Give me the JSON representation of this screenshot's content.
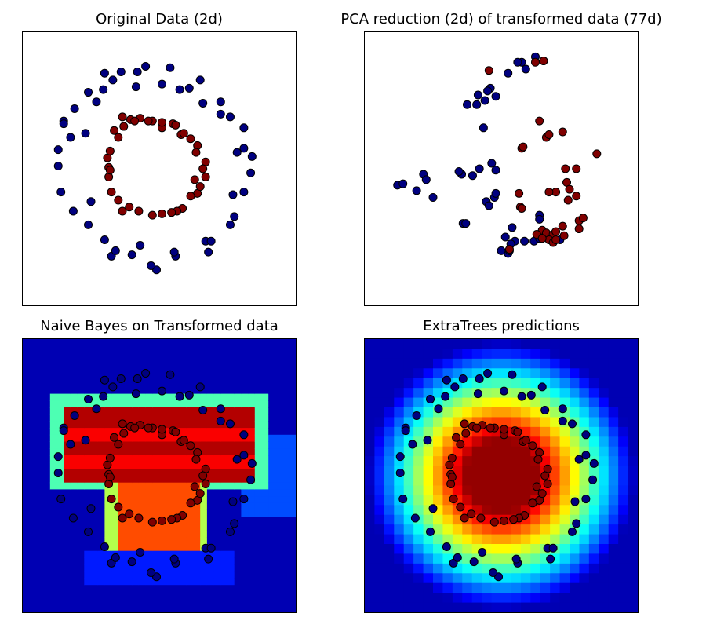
{
  "chart_data": [
    {
      "type": "scatter",
      "title": "Original Data (2d)",
      "xlim": [
        -1.0,
        1.0
      ],
      "ylim": [
        -1.0,
        1.0
      ],
      "grid": false,
      "axes_ticks": false,
      "colors": {
        "class_0": "#000080",
        "class_1": "#800000"
      },
      "series": [
        {
          "points": [
            [
              -0.34,
              0.65
            ],
            [
              -0.17,
              0.6
            ],
            [
              0.02,
              0.62
            ],
            [
              0.15,
              0.58
            ],
            [
              0.32,
              0.48
            ],
            [
              0.45,
              0.4
            ],
            [
              0.62,
              0.3
            ],
            [
              0.57,
              0.12
            ],
            [
              0.67,
              -0.03
            ],
            [
              0.62,
              -0.17
            ],
            [
              0.55,
              -0.35
            ],
            [
              0.52,
              -0.41
            ],
            [
              0.34,
              -0.53
            ],
            [
              0.12,
              -0.64
            ],
            [
              -0.02,
              -0.74
            ],
            [
              -0.2,
              -0.63
            ],
            [
              -0.4,
              -0.52
            ],
            [
              -0.52,
              -0.41
            ],
            [
              -0.63,
              -0.31
            ],
            [
              -0.72,
              -0.17
            ],
            [
              -0.74,
              0.02
            ],
            [
              -0.74,
              0.14
            ],
            [
              -0.7,
              0.35
            ],
            [
              -0.62,
              0.44
            ],
            [
              -0.52,
              0.56
            ],
            [
              -0.4,
              0.7
            ],
            [
              -0.28,
              0.71
            ],
            [
              -0.1,
              0.75
            ],
            [
              0.08,
              0.74
            ],
            [
              0.3,
              0.65
            ],
            [
              0.52,
              0.38
            ],
            [
              0.68,
              0.09
            ],
            [
              0.54,
              -0.19
            ],
            [
              0.36,
              -0.61
            ],
            [
              0.11,
              -0.61
            ],
            [
              -0.14,
              -0.56
            ],
            [
              -0.35,
              -0.64
            ],
            [
              -0.5,
              -0.24
            ],
            [
              -0.65,
              0.23
            ],
            [
              -0.46,
              0.49
            ],
            [
              -0.16,
              0.71
            ],
            [
              0.22,
              0.59
            ],
            [
              0.45,
              0.49
            ],
            [
              0.62,
              0.15
            ],
            [
              0.38,
              -0.53
            ],
            [
              -0.06,
              -0.71
            ],
            [
              -0.32,
              -0.6
            ],
            [
              -0.7,
              0.33
            ],
            [
              -0.54,
              0.26
            ],
            [
              -0.41,
              0.58
            ]
          ],
          "class": 0
        },
        {
          "points": [
            [
              -0.27,
              0.38
            ],
            [
              -0.14,
              0.37
            ],
            [
              0.02,
              0.3
            ],
            [
              0.16,
              0.25
            ],
            [
              0.28,
              0.17
            ],
            [
              0.34,
              0.05
            ],
            [
              0.34,
              -0.06
            ],
            [
              0.28,
              -0.18
            ],
            [
              0.17,
              -0.29
            ],
            [
              0.02,
              -0.33
            ],
            [
              -0.15,
              -0.31
            ],
            [
              -0.3,
              -0.23
            ],
            [
              -0.37,
              -0.06
            ],
            [
              -0.38,
              0.08
            ],
            [
              -0.3,
              0.23
            ],
            [
              -0.21,
              0.36
            ],
            [
              -0.05,
              0.35
            ],
            [
              0.1,
              0.33
            ],
            [
              0.23,
              0.22
            ],
            [
              0.32,
              0.0
            ],
            [
              0.23,
              -0.2
            ],
            [
              -0.05,
              -0.34
            ],
            [
              -0.27,
              -0.31
            ],
            [
              -0.35,
              -0.17
            ],
            [
              -0.36,
              0.13
            ],
            [
              -0.33,
              0.28
            ],
            [
              -0.26,
              0.31
            ],
            [
              -0.08,
              0.35
            ],
            [
              0.12,
              0.32
            ],
            [
              0.27,
              0.12
            ],
            [
              0.3,
              -0.13
            ],
            [
              0.13,
              -0.31
            ],
            [
              -0.22,
              -0.28
            ],
            [
              -0.37,
              0.01
            ],
            [
              0.18,
              0.26
            ],
            [
              0.02,
              0.34
            ],
            [
              -0.36,
              -0.01
            ],
            [
              0.09,
              -0.32
            ],
            [
              0.26,
              -0.08
            ],
            [
              -0.18,
              0.35
            ]
          ],
          "class": 1
        }
      ]
    },
    {
      "type": "scatter",
      "title": "PCA reduction (2d) of transformed data (77d)",
      "xlim": [
        -1.0,
        1.0
      ],
      "ylim": [
        -1.0,
        1.0
      ],
      "grid": false,
      "axes_ticks": false,
      "colors": {
        "class_0": "#000080",
        "class_1": "#800000"
      },
      "series": [
        {
          "points": [
            [
              0.05,
              0.7
            ],
            [
              0.15,
              0.78
            ],
            [
              0.25,
              0.82
            ],
            [
              0.18,
              0.73
            ],
            [
              -0.08,
              0.59
            ],
            [
              -0.04,
              0.53
            ],
            [
              -0.18,
              0.47
            ],
            [
              -0.25,
              0.47
            ],
            [
              -0.12,
              0.5
            ],
            [
              -0.17,
              0.54
            ],
            [
              -0.1,
              0.57
            ],
            [
              -0.13,
              0.3
            ],
            [
              0.12,
              0.78
            ],
            [
              0.31,
              0.79
            ],
            [
              -0.76,
              -0.12
            ],
            [
              -0.72,
              -0.11
            ],
            [
              -0.57,
              -0.04
            ],
            [
              -0.55,
              -0.08
            ],
            [
              -0.62,
              -0.16
            ],
            [
              -0.5,
              -0.21
            ],
            [
              -0.29,
              -0.04
            ],
            [
              -0.31,
              -0.02
            ],
            [
              -0.21,
              -0.05
            ],
            [
              -0.05,
              -0.21
            ],
            [
              -0.11,
              -0.24
            ],
            [
              -0.16,
              0.0
            ],
            [
              -0.07,
              0.04
            ],
            [
              -0.04,
              -0.01
            ],
            [
              -0.04,
              -0.18
            ],
            [
              -0.09,
              -0.27
            ],
            [
              -0.28,
              -0.4
            ],
            [
              -0.26,
              -0.4
            ],
            [
              0.28,
              -0.34
            ],
            [
              0.28,
              -0.37
            ],
            [
              0.24,
              -0.53
            ],
            [
              0.28,
              -0.51
            ],
            [
              0.36,
              -0.51
            ],
            [
              0.38,
              -0.51
            ],
            [
              0.17,
              -0.53
            ],
            [
              0.08,
              -0.43
            ],
            [
              0.1,
              -0.53
            ],
            [
              0.07,
              -0.55
            ],
            [
              0.05,
              -0.62
            ],
            [
              0.06,
              -0.6
            ],
            [
              0.03,
              -0.5
            ],
            [
              0.0,
              -0.6
            ],
            [
              0.43,
              -0.52
            ]
          ],
          "class": 0
        },
        {
          "points": [
            [
              0.31,
              0.79
            ],
            [
              0.25,
              0.78
            ],
            [
              -0.09,
              0.72
            ],
            [
              0.28,
              0.35
            ],
            [
              0.48,
              -0.1
            ],
            [
              0.55,
              -0.0
            ],
            [
              0.33,
              0.23
            ],
            [
              0.35,
              0.25
            ],
            [
              0.45,
              0.27
            ],
            [
              0.7,
              0.11
            ],
            [
              0.47,
              0.0
            ],
            [
              0.5,
              -0.15
            ],
            [
              0.55,
              -0.2
            ],
            [
              0.49,
              -0.23
            ],
            [
              0.4,
              -0.17
            ],
            [
              0.35,
              -0.17
            ],
            [
              0.15,
              0.15
            ],
            [
              0.16,
              0.16
            ],
            [
              0.3,
              -0.45
            ],
            [
              0.33,
              -0.47
            ],
            [
              0.38,
              -0.48
            ],
            [
              0.4,
              -0.46
            ],
            [
              0.45,
              -0.42
            ],
            [
              0.57,
              -0.38
            ],
            [
              0.6,
              -0.36
            ],
            [
              0.57,
              -0.44
            ],
            [
              0.46,
              -0.49
            ],
            [
              0.35,
              -0.52
            ],
            [
              0.14,
              -0.28
            ],
            [
              0.15,
              -0.29
            ],
            [
              0.13,
              -0.18
            ],
            [
              0.06,
              -0.59
            ],
            [
              0.26,
              -0.48
            ],
            [
              0.3,
              -0.51
            ],
            [
              0.38,
              -0.54
            ],
            [
              0.4,
              -0.52
            ]
          ],
          "class": 1
        }
      ]
    },
    {
      "type": "heatmap",
      "title": "Naive Bayes on Transformed data",
      "colormap": "jet",
      "xlim": [
        -1.0,
        1.0
      ],
      "ylim": [
        -1.0,
        1.0
      ],
      "grid": false,
      "axes_ticks": false,
      "overlay": "Original Data (2d) points"
    },
    {
      "type": "heatmap",
      "title": "ExtraTrees predictions",
      "colormap": "jet",
      "xlim": [
        -1.0,
        1.0
      ],
      "ylim": [
        -1.0,
        1.0
      ],
      "grid": false,
      "axes_ticks": false,
      "overlay": "Original Data (2d) points"
    }
  ]
}
